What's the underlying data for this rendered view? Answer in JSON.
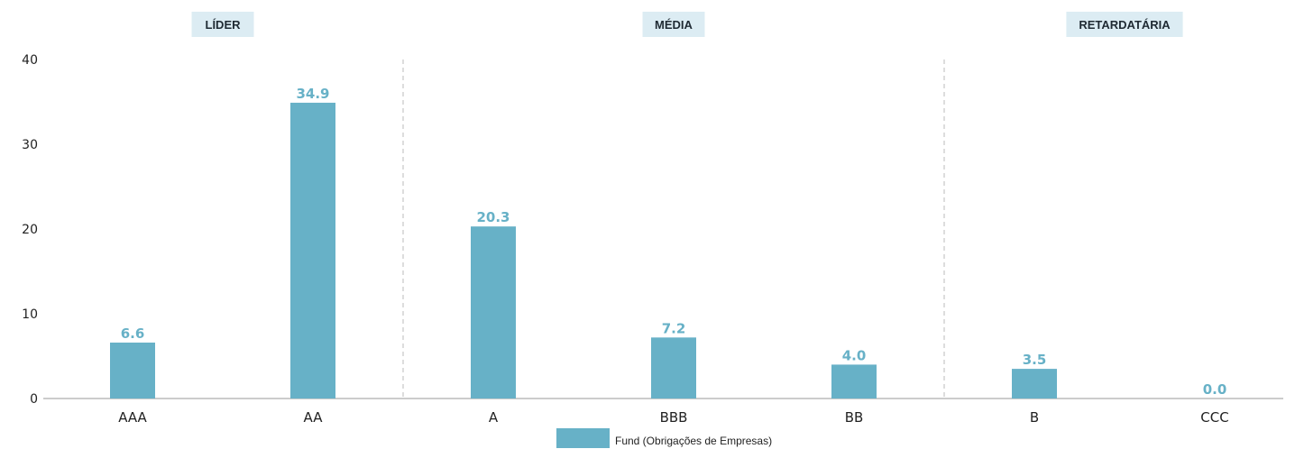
{
  "chart_data": {
    "type": "bar",
    "categories": [
      "AAA",
      "AA",
      "A",
      "BBB",
      "BB",
      "B",
      "CCC"
    ],
    "series": [
      {
        "name": "Fund (Obrigações de Empresas)",
        "values": [
          6.6,
          34.9,
          20.3,
          7.2,
          4.0,
          3.5,
          0.0
        ]
      }
    ],
    "value_labels": [
      "6.6",
      "34.9",
      "20.3",
      "7.2",
      "4.0",
      "3.5",
      "0.0"
    ],
    "groups": [
      {
        "label": "LÍDER",
        "categories": [
          "AAA",
          "AA"
        ]
      },
      {
        "label": "MÉDIA",
        "categories": [
          "A",
          "BBB",
          "BB"
        ]
      },
      {
        "label": "RETARDATÁRIA",
        "categories": [
          "B",
          "CCC"
        ]
      }
    ],
    "ylim": [
      0,
      40
    ],
    "yticks": [
      "0",
      "10",
      "20",
      "30",
      "40"
    ],
    "xlabel": "",
    "ylabel": "",
    "legend_position": "bottom",
    "grid": false,
    "colors": {
      "bar": "#67b1c7",
      "value_label": "#67b1c7",
      "group_label_bg": "#dcecf3",
      "divider": "#bbbbbb"
    }
  }
}
